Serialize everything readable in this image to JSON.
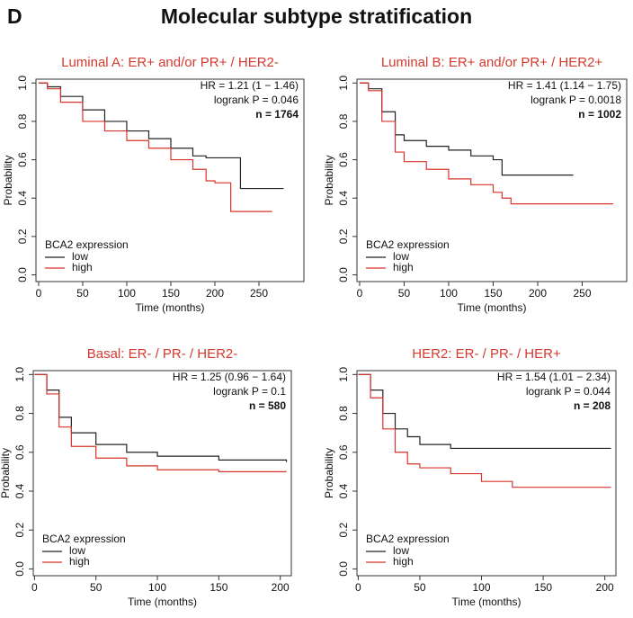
{
  "figure_label": "D",
  "title": "Molecular subtype stratification",
  "chart_data": [
    {
      "type": "line",
      "step": true,
      "title": "Luminal A: ER+ and/or PR+ / HER2-",
      "annotations": [
        "HR = 1.21 (1 − 1.46)",
        "logrank P = 0.046",
        "n = 1764"
      ],
      "x_label": "Time (months)",
      "y_label": "Probability",
      "legend_title": "BCA2 expression",
      "x": [
        0,
        10,
        25,
        50,
        75,
        100,
        125,
        150,
        175,
        190,
        200,
        218,
        229,
        265,
        278
      ],
      "series": [
        {
          "name": "low",
          "color": "#222222",
          "values": [
            1.0,
            0.98,
            0.93,
            0.86,
            0.8,
            0.75,
            0.71,
            0.66,
            0.62,
            0.61,
            0.61,
            0.61,
            0.45,
            0.45,
            0.45
          ]
        },
        {
          "name": "high",
          "color": "#d9342b",
          "values": [
            1.0,
            0.97,
            0.9,
            0.8,
            0.75,
            0.7,
            0.66,
            0.6,
            0.55,
            0.49,
            0.48,
            0.33,
            0.33,
            0.33,
            null
          ]
        }
      ],
      "xlim": [
        -3,
        301
      ],
      "xticks": [
        0,
        50,
        100,
        150,
        200,
        250
      ],
      "ylim": [
        -0.035,
        1.02
      ],
      "yticks": [
        {
          "value": 0,
          "label": "0.0"
        },
        {
          "value": 0.2,
          "label": "0.2"
        },
        {
          "value": 0.4,
          "label": "0.4"
        },
        {
          "value": 0.6,
          "label": "0.6"
        },
        {
          "value": 0.8,
          "label": "0.8"
        },
        {
          "value": 1,
          "label": "1.0"
        }
      ]
    },
    {
      "type": "line",
      "step": true,
      "title": "Luminal B: ER+ and/or PR+ / HER2+",
      "annotations": [
        "HR = 1.41 (1.14 − 1.75)",
        "logrank P = 0.0018",
        "n = 1002"
      ],
      "x_label": "Time (months)",
      "y_label": "Probability",
      "legend_title": "BCA2 expression",
      "x": [
        0,
        10,
        25,
        40,
        50,
        75,
        100,
        125,
        150,
        160,
        170,
        240,
        285
      ],
      "series": [
        {
          "name": "low",
          "color": "#222222",
          "values": [
            1.0,
            0.97,
            0.85,
            0.73,
            0.7,
            0.67,
            0.65,
            0.62,
            0.6,
            0.52,
            0.52,
            0.52,
            null
          ]
        },
        {
          "name": "high",
          "color": "#d9342b",
          "values": [
            1.0,
            0.96,
            0.8,
            0.64,
            0.59,
            0.55,
            0.5,
            0.47,
            0.43,
            0.4,
            0.37,
            0.37,
            0.37
          ]
        }
      ],
      "xlim": [
        -3,
        300
      ],
      "xticks": [
        0,
        50,
        100,
        150,
        200,
        250
      ],
      "ylim": [
        -0.035,
        1.02
      ],
      "yticks": [
        {
          "value": 0,
          "label": "0.0"
        },
        {
          "value": 0.2,
          "label": "0.2"
        },
        {
          "value": 0.4,
          "label": "0.4"
        },
        {
          "value": 0.6,
          "label": "0.6"
        },
        {
          "value": 0.8,
          "label": "0.8"
        },
        {
          "value": 1,
          "label": "1.0"
        }
      ]
    },
    {
      "type": "line",
      "step": true,
      "title": "Basal: ER- / PR- / HER2-",
      "annotations": [
        "HR = 1.25 (0.96 − 1.64)",
        "logrank P = 0.1",
        "n = 580"
      ],
      "x_label": "Time (months)",
      "y_label": "Probability",
      "legend_title": "BCA2 expression",
      "x": [
        0,
        10,
        20,
        30,
        50,
        75,
        100,
        150,
        205
      ],
      "series": [
        {
          "name": "low",
          "color": "#222222",
          "values": [
            1.0,
            0.92,
            0.78,
            0.7,
            0.64,
            0.6,
            0.58,
            0.56,
            0.55
          ]
        },
        {
          "name": "high",
          "color": "#d9342b",
          "values": [
            1.0,
            0.9,
            0.73,
            0.63,
            0.57,
            0.53,
            0.51,
            0.5,
            0.5
          ]
        }
      ],
      "xlim": [
        -1,
        209
      ],
      "xticks": [
        0,
        50,
        100,
        150,
        200
      ],
      "ylim": [
        -0.035,
        1.02
      ],
      "yticks": [
        {
          "value": 0,
          "label": "0.0"
        },
        {
          "value": 0.2,
          "label": "0.2"
        },
        {
          "value": 0.4,
          "label": "0.4"
        },
        {
          "value": 0.6,
          "label": "0.6"
        },
        {
          "value": 0.8,
          "label": "0.8"
        },
        {
          "value": 1,
          "label": "1.0"
        }
      ]
    },
    {
      "type": "line",
      "step": true,
      "title": "HER2: ER- / PR- / HER+",
      "annotations": [
        "HR = 1.54 (1.01 − 2.34)",
        "logrank P = 0.044",
        "n = 208"
      ],
      "x_label": "Time (months)",
      "y_label": "Probability",
      "legend_title": "BCA2 expression",
      "x": [
        0,
        10,
        20,
        30,
        40,
        50,
        75,
        100,
        125,
        150,
        205
      ],
      "series": [
        {
          "name": "low",
          "color": "#222222",
          "values": [
            1.0,
            0.92,
            0.8,
            0.72,
            0.68,
            0.64,
            0.62,
            0.62,
            0.62,
            0.62,
            0.62
          ]
        },
        {
          "name": "high",
          "color": "#d9342b",
          "values": [
            1.0,
            0.88,
            0.72,
            0.6,
            0.54,
            0.52,
            0.49,
            0.45,
            0.42,
            0.42,
            0.42
          ]
        }
      ],
      "xlim": [
        -1,
        209
      ],
      "xticks": [
        0,
        50,
        100,
        150,
        200
      ],
      "ylim": [
        -0.035,
        1.02
      ],
      "yticks": [
        {
          "value": 0,
          "label": "0.0"
        },
        {
          "value": 0.2,
          "label": "0.2"
        },
        {
          "value": 0.4,
          "label": "0.4"
        },
        {
          "value": 0.6,
          "label": "0.6"
        },
        {
          "value": 0.8,
          "label": "0.8"
        },
        {
          "value": 1,
          "label": "1.0"
        }
      ]
    }
  ]
}
